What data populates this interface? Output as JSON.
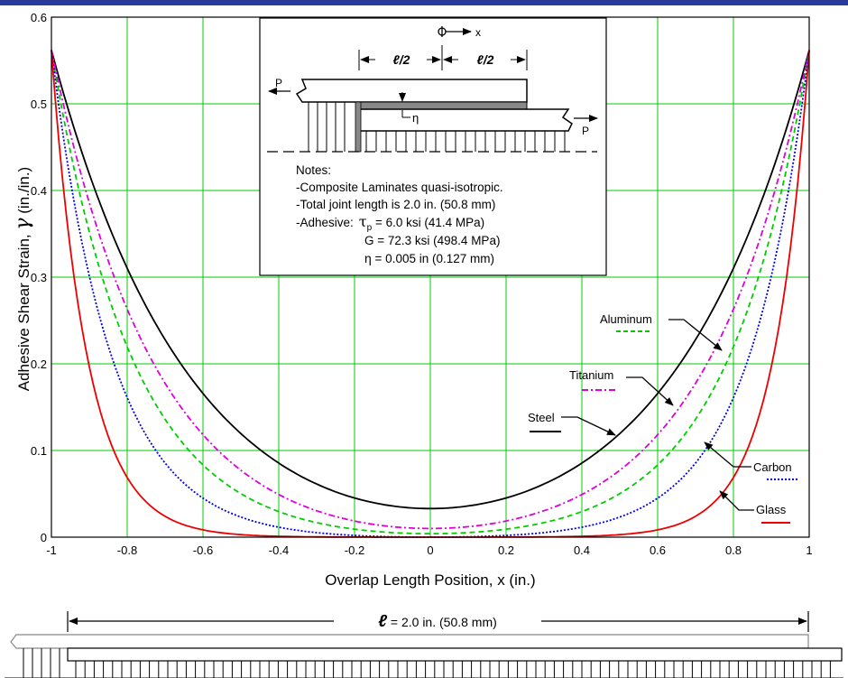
{
  "chart_data": {
    "type": "line",
    "xlabel": "Overlap Length Position, x (in.)",
    "ylabel": "Adhesive Shear Strain,",
    "ylabel_symbol": "γ",
    "ylabel_unit": "(in./in.)",
    "xlim": [
      -1,
      1
    ],
    "ylim": [
      0,
      0.6
    ],
    "x_ticks": [
      "-1",
      "-0.8",
      "-0.6",
      "-0.4",
      "-0.2",
      "0",
      "0.2",
      "0.4",
      "0.6",
      "0.8",
      "1"
    ],
    "y_ticks": [
      "0",
      "0.1",
      "0.2",
      "0.3",
      "0.4",
      "0.5",
      "0.6"
    ],
    "grid": true,
    "series": [
      {
        "name": "Steel",
        "color": "#000000",
        "dash": "solid",
        "min": 0.033,
        "edge": 0.562
      },
      {
        "name": "Aluminum",
        "color": "#00cc00",
        "dash": "dashed",
        "min": 0.004,
        "edge": 0.562
      },
      {
        "name": "Titanium",
        "color": "#dd00dd",
        "dash": "dashdot",
        "min": 0.01,
        "edge": 0.562
      },
      {
        "name": "Carbon",
        "color": "#0000ee",
        "dash": "dotted",
        "min": 0.0,
        "edge": 0.562
      },
      {
        "name": "Glass",
        "color": "#ee0000",
        "dash": "solid",
        "min": 0.0,
        "edge": 0.562
      }
    ]
  },
  "inset": {
    "axis_label": "x",
    "half_length_left": "ℓ/2",
    "half_length_right": "ℓ/2",
    "load_left": "P",
    "load_right": "P",
    "thickness_label": "η",
    "notes_title": "Notes:",
    "note_1": "-Composite Laminates quasi-isotropic.",
    "note_2": "-Total joint length is 2.0 in. (50.8 mm)",
    "note_3_prefix": "-Adhesive:",
    "note_3_symbol": "τ",
    "note_3_sub": "p",
    "note_3_value": " = 6.0 ksi (41.4 MPa)",
    "note_4": "G = 72.3 ksi (498.4 MPa)",
    "note_5_symbol": "η",
    "note_5_value": " = 0.005 in (0.127 mm)"
  },
  "bottom": {
    "length_symbol": "ℓ",
    "length_value": " = 2.0 in. (50.8 mm)"
  }
}
